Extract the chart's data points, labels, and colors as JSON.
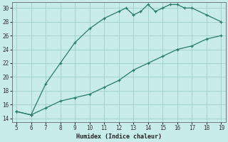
{
  "xlabel": "Humidex (Indice chaleur)",
  "x_upper": [
    5,
    6,
    7,
    8,
    9,
    10,
    11,
    12,
    12.5,
    13,
    13.5,
    14,
    14.5,
    15,
    15.5,
    16,
    16.5,
    17,
    18,
    19
  ],
  "y_upper": [
    15,
    14.5,
    19,
    22,
    25,
    27,
    28.5,
    29.5,
    30,
    29,
    29.5,
    30.5,
    29.5,
    30,
    30.5,
    30.5,
    30,
    30,
    29,
    28
  ],
  "x_lower": [
    5,
    6,
    7,
    8,
    9,
    10,
    11,
    12,
    13,
    14,
    15,
    16,
    17,
    18,
    19
  ],
  "y_lower": [
    15,
    14.5,
    15.5,
    16.5,
    17,
    17.5,
    18.5,
    19.5,
    21,
    22,
    23,
    24,
    24.5,
    25.5,
    26
  ],
  "xlim_min": 4.7,
  "xlim_max": 19.3,
  "ylim_min": 13.5,
  "ylim_max": 30.8,
  "xticks": [
    5,
    6,
    7,
    8,
    9,
    10,
    11,
    12,
    13,
    14,
    15,
    16,
    17,
    18,
    19
  ],
  "yticks": [
    14,
    16,
    18,
    20,
    22,
    24,
    26,
    28,
    30
  ],
  "line_color": "#2a7a6a",
  "bg_color": "#c8ede8",
  "grid_color": "#a0cfc8"
}
